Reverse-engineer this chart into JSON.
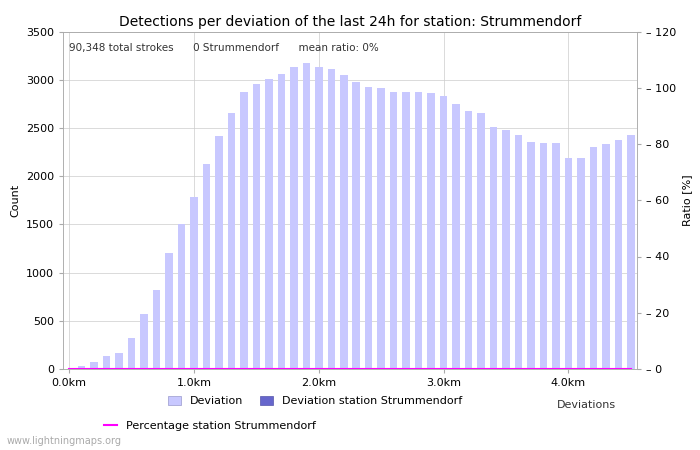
{
  "title": "Detections per deviation of the last 24h for station: Strummendorf",
  "subtitle": "90,348 total strokes      0 Strummendorf      mean ratio: 0%",
  "xlabel": "Deviations",
  "ylabel_left": "Count",
  "ylabel_right": "Ratio [%]",
  "watermark": "www.lightningmaps.org",
  "ylim_left": [
    0,
    3500
  ],
  "ylim_right": [
    0,
    120
  ],
  "xtick_positions": [
    0,
    10,
    20,
    30,
    40
  ],
  "xtick_labels": [
    "0.0km",
    "1.0km",
    "2.0km",
    "3.0km",
    "4.0km"
  ],
  "ytick_left": [
    0,
    500,
    1000,
    1500,
    2000,
    2500,
    3000,
    3500
  ],
  "ytick_right": [
    0,
    20,
    40,
    60,
    80,
    100,
    120
  ],
  "bar_values": [
    0,
    30,
    70,
    130,
    170,
    320,
    570,
    820,
    1200,
    1500,
    1780,
    2130,
    2420,
    2650,
    2870,
    2960,
    3010,
    3060,
    3130,
    3170,
    3130,
    3110,
    3050,
    2980,
    2920,
    2910,
    2870,
    2870,
    2870,
    2860,
    2830,
    2750,
    2680,
    2650,
    2510,
    2480,
    2430,
    2350,
    2340,
    2340,
    2190,
    2190,
    2300,
    2330,
    2380,
    2430
  ],
  "bar_color_light": "#c8c8ff",
  "bar_color_dark": "#6666cc",
  "station_bar_values": [
    0,
    0,
    0,
    0,
    0,
    0,
    0,
    0,
    0,
    0,
    0,
    0,
    0,
    0,
    0,
    0,
    0,
    0,
    0,
    0,
    0,
    0,
    0,
    0,
    0,
    0,
    0,
    0,
    0,
    0,
    0,
    0,
    0,
    0,
    0,
    0,
    0,
    0,
    0,
    0,
    0,
    0,
    0,
    0,
    0,
    0
  ],
  "percentage_values": [
    0,
    0,
    0,
    0,
    0,
    0,
    0,
    0,
    0,
    0,
    0,
    0,
    0,
    0,
    0,
    0,
    0,
    0,
    0,
    0,
    0,
    0,
    0,
    0,
    0,
    0,
    0,
    0,
    0,
    0,
    0,
    0,
    0,
    0,
    0,
    0,
    0,
    0,
    0,
    0,
    0,
    0,
    0,
    0,
    0,
    0
  ],
  "percentage_color": "#ff00ff",
  "grid_color": "#cccccc",
  "background_color": "#ffffff",
  "title_fontsize": 10,
  "subtitle_fontsize": 7.5,
  "axis_fontsize": 8,
  "tick_fontsize": 8,
  "legend_fontsize": 8
}
